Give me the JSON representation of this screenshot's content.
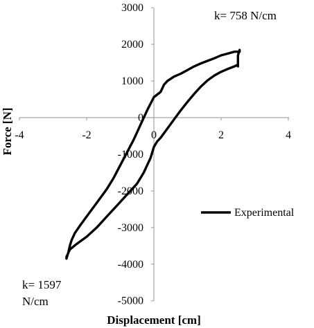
{
  "chart_data": {
    "type": "line",
    "xlabel": "Displacement [cm]",
    "ylabel": "Force [N]",
    "xlim": [
      -4,
      4
    ],
    "ylim": [
      -5000,
      3000
    ],
    "x_ticks": [
      -4,
      -2,
      0,
      2,
      4
    ],
    "y_ticks": [
      3000,
      2000,
      1000,
      0,
      -1000,
      -2000,
      -3000,
      -4000,
      -5000
    ],
    "grid": false,
    "legend": {
      "placement": "right",
      "entries": [
        "Experimental"
      ]
    },
    "annotations": [
      {
        "text": "k= 758 N/cm"
      },
      {
        "text": "k= 1597"
      },
      {
        "text": "N/cm"
      }
    ],
    "series": [
      {
        "name": "Experimental",
        "color": "#000000",
        "x": [
          2.5,
          2.5,
          2.55,
          2.55,
          2.4,
          2.2,
          2.0,
          1.8,
          1.6,
          1.4,
          1.2,
          1.0,
          0.8,
          0.6,
          0.4,
          0.3,
          0.2,
          0.0,
          -0.2,
          -0.4,
          -0.6,
          -0.8,
          -1.0,
          -1.2,
          -1.4,
          -1.6,
          -1.8,
          -2.0,
          -2.2,
          -2.35,
          -2.45,
          -2.5,
          -2.55,
          -2.6,
          -2.6,
          -2.55,
          -2.5,
          -2.3,
          -2.0,
          -1.7,
          -1.4,
          -1.1,
          -0.8,
          -0.5,
          -0.3,
          -0.1,
          0.0,
          0.1,
          0.2,
          0.4,
          0.6,
          0.8,
          1.0,
          1.2,
          1.4,
          1.6,
          1.8,
          2.0,
          2.2,
          2.4,
          2.5
        ],
        "y": [
          1400,
          1700,
          1850,
          1800,
          1800,
          1750,
          1700,
          1620,
          1550,
          1480,
          1400,
          1300,
          1200,
          1120,
          1000,
          900,
          700,
          560,
          200,
          -200,
          -600,
          -950,
          -1300,
          -1650,
          -1950,
          -2200,
          -2450,
          -2700,
          -2950,
          -3150,
          -3350,
          -3500,
          -3700,
          -3850,
          -3800,
          -3700,
          -3600,
          -3450,
          -3250,
          -3000,
          -2700,
          -2400,
          -2100,
          -1800,
          -1500,
          -1100,
          -800,
          -650,
          -550,
          -300,
          -50,
          200,
          430,
          650,
          850,
          1020,
          1150,
          1250,
          1330,
          1400,
          1450
        ]
      }
    ]
  }
}
